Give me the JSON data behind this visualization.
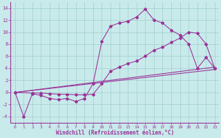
{
  "xlabel": "Windchill (Refroidissement éolien,°C)",
  "bg_color": "#c8eaea",
  "grid_color": "#a0cccc",
  "line_color": "#993399",
  "xlim": [
    -0.5,
    23.5
  ],
  "ylim": [
    -5,
    15
  ],
  "yticks": [
    -4,
    -2,
    0,
    2,
    4,
    6,
    8,
    10,
    12,
    14
  ],
  "xticks": [
    0,
    1,
    2,
    3,
    4,
    5,
    6,
    7,
    8,
    9,
    10,
    11,
    12,
    13,
    14,
    15,
    16,
    17,
    18,
    19,
    20,
    21,
    22,
    23
  ],
  "line1_x": [
    0,
    1,
    2,
    3,
    4,
    5,
    6,
    7,
    8,
    9,
    10,
    11,
    12,
    13,
    14,
    15,
    16,
    17,
    18,
    19,
    20,
    21,
    22,
    23
  ],
  "line1_y": [
    0,
    -4,
    -0.2,
    -0.5,
    -1.0,
    -1.2,
    -1.0,
    -1.5,
    -1.0,
    1.5,
    8.5,
    11.0,
    11.5,
    11.8,
    12.5,
    13.8,
    12.0,
    11.5,
    10.3,
    9.5,
    8.0,
    4.0,
    5.8,
    4.0
  ],
  "line2_x": [
    0,
    2,
    3,
    4,
    5,
    6,
    7,
    8,
    9,
    10,
    11,
    12,
    13,
    14,
    15,
    16,
    17,
    18,
    19,
    20,
    21,
    22,
    23
  ],
  "line2_y": [
    0,
    -0.1,
    -0.1,
    -0.2,
    -0.3,
    -0.3,
    -0.4,
    -0.4,
    -0.3,
    1.5,
    3.5,
    4.2,
    4.8,
    5.2,
    6.0,
    7.0,
    7.5,
    8.3,
    9.0,
    10.0,
    9.8,
    8.0,
    4.0
  ],
  "line3_x": [
    0,
    23
  ],
  "line3_y": [
    0,
    3.8
  ],
  "line4_x": [
    0,
    23
  ],
  "line4_y": [
    0,
    4.2
  ]
}
